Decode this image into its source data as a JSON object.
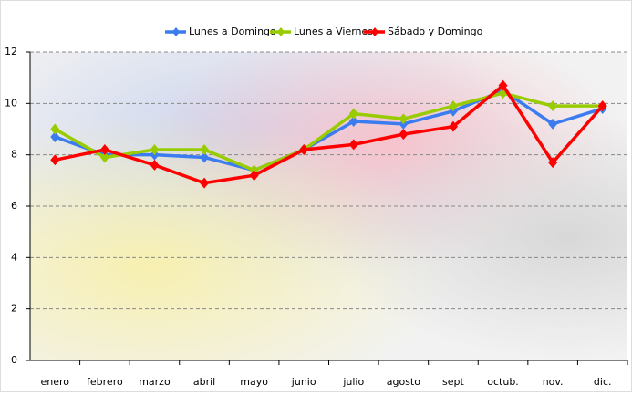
{
  "chart_data": {
    "type": "line",
    "categories": [
      "enero",
      "febrero",
      "marzo",
      "abril",
      "mayo",
      "junio",
      "julio",
      "agosto",
      "sept",
      "octub.",
      "nov.",
      "dic."
    ],
    "series": [
      {
        "name": "Lunes a Domingo",
        "color": "#3b7cf0",
        "values": [
          8.7,
          8.0,
          8.0,
          7.9,
          7.4,
          8.2,
          9.3,
          9.2,
          9.7,
          10.5,
          9.2,
          9.8
        ]
      },
      {
        "name": "Lunes a Viernes",
        "color": "#99cc00",
        "values": [
          9.0,
          7.9,
          8.2,
          8.2,
          7.4,
          8.2,
          9.6,
          9.4,
          9.9,
          10.4,
          9.9,
          9.9
        ]
      },
      {
        "name": "Sábado y Domingo",
        "color": "#ff0000",
        "values": [
          7.8,
          8.2,
          7.6,
          6.9,
          7.2,
          8.2,
          8.4,
          8.8,
          9.1,
          10.7,
          7.7,
          9.9
        ]
      }
    ],
    "ylim": [
      0,
      12
    ],
    "yticks": [
      0,
      2,
      4,
      6,
      8,
      10,
      12
    ],
    "grid": true,
    "legend": "top"
  }
}
